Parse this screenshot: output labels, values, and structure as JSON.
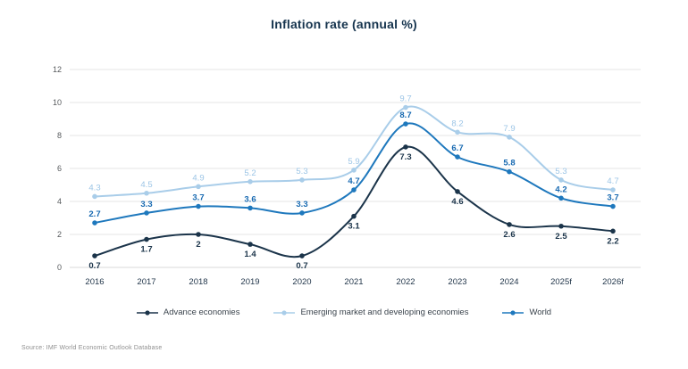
{
  "header": {
    "title": "Inflation rate (annual %)"
  },
  "chart_data": {
    "type": "line",
    "title": "Inflation rate (annual %)",
    "categories": [
      "2016",
      "2017",
      "2018",
      "2019",
      "2020",
      "2021",
      "2022",
      "2023",
      "2024",
      "2025f",
      "2026f"
    ],
    "series": [
      {
        "name": "Advance economies",
        "color": "#1b344a",
        "label_color": "#1b344a",
        "label_weight": "bold",
        "label_position": "below",
        "values": [
          0.7,
          1.7,
          2,
          1.4,
          0.7,
          3.1,
          7.3,
          4.6,
          2.6,
          2.5,
          2.2
        ]
      },
      {
        "name": "Emerging market and developing economies",
        "color": "#a9cde9",
        "label_color": "#9cc5e6",
        "label_weight": "normal",
        "label_position": "above",
        "values": [
          4.3,
          4.5,
          4.9,
          5.2,
          5.3,
          5.9,
          9.7,
          8.2,
          7.9,
          5.3,
          4.7
        ]
      },
      {
        "name": "World",
        "color": "#1e78bd",
        "label_color": "#1769b1",
        "label_weight": "bold",
        "label_position": "above",
        "values": [
          2.7,
          3.3,
          3.7,
          3.6,
          3.3,
          4.7,
          8.7,
          6.7,
          5.8,
          4.2,
          3.7
        ]
      }
    ],
    "ylim": [
      0,
      12
    ],
    "yticks": [
      0,
      2,
      4,
      6,
      8,
      10,
      12
    ],
    "grid": "horizontal",
    "legend_position": "bottom",
    "colors": {
      "grid_line": "#e6e6e6",
      "zero_line": "#d8d8d8",
      "y_tick_label": "#56595c",
      "x_tick_label": "#24384c"
    }
  },
  "footer": {
    "source": "Source: IMF World Economic Outlook Database"
  }
}
